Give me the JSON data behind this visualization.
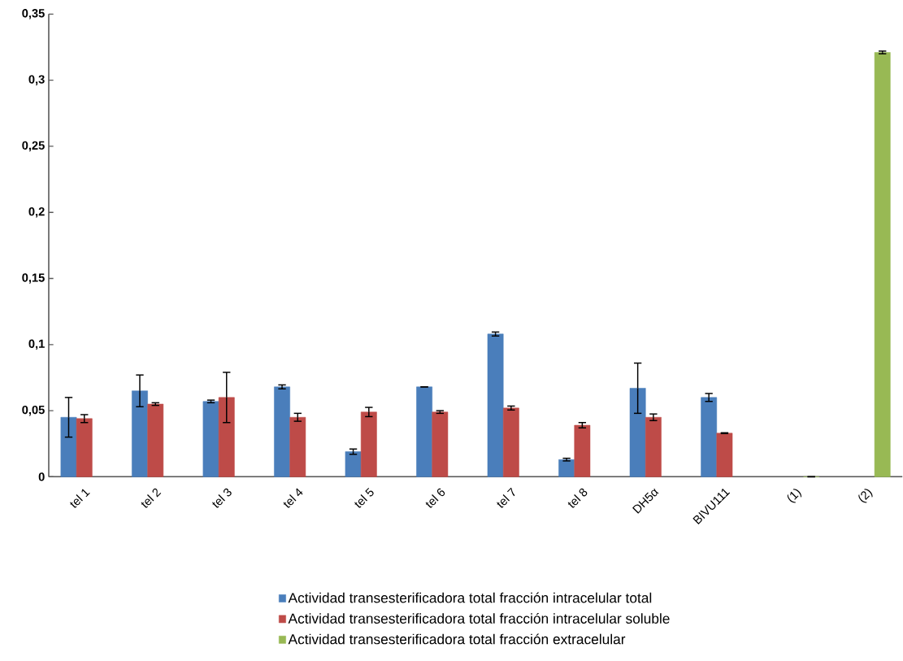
{
  "chart_data": {
    "type": "bar",
    "categories": [
      "tel 1",
      "tel 2",
      "tel 3",
      "tel 4",
      "tel 5",
      "tel 6",
      "tel 7",
      "tel 8",
      "DH5α",
      "BIVU111",
      "(1)",
      "(2)"
    ],
    "series": [
      {
        "name": "Actividad transesterificadora total fracción intracelular total",
        "color": "#4a7ebb",
        "values": [
          0.045,
          0.065,
          0.057,
          0.068,
          0.019,
          0.068,
          0.108,
          0.013,
          0.067,
          0.06,
          null,
          null
        ],
        "errors": [
          0.015,
          0.012,
          0.001,
          0.0015,
          0.002,
          null,
          0.0015,
          0.001,
          0.019,
          0.003,
          null,
          null
        ]
      },
      {
        "name": "Actividad transesterificadora total fracción intracelular soluble",
        "color": "#be4b48",
        "values": [
          0.044,
          0.055,
          0.06,
          0.045,
          0.049,
          0.049,
          0.052,
          0.039,
          0.045,
          0.033,
          null,
          null
        ],
        "errors": [
          0.003,
          0.001,
          0.019,
          0.003,
          0.0035,
          0.001,
          0.0015,
          0.002,
          0.0025,
          0.0003,
          null,
          null
        ]
      },
      {
        "name": "Actividad transesterificadora total fracción extracelular",
        "color": "#98b954",
        "values": [
          null,
          null,
          null,
          null,
          null,
          null,
          null,
          null,
          null,
          null,
          0,
          0.321
        ],
        "errors": [
          null,
          null,
          null,
          null,
          null,
          null,
          null,
          null,
          null,
          null,
          null,
          0.001
        ]
      }
    ],
    "ylim": [
      0,
      0.35
    ],
    "yticks": [
      0,
      {
        "value": 0.05,
        "label": "0,05"
      },
      {
        "value": 0.1,
        "label": "0,1"
      },
      {
        "value": 0.15,
        "label": "0,15"
      },
      {
        "value": 0.2,
        "label": "0,2"
      },
      {
        "value": 0.25,
        "label": "0,25"
      },
      {
        "value": 0.3,
        "label": "0,3"
      },
      {
        "value": 0.35,
        "label": "0,35"
      }
    ],
    "grid": false,
    "legend": "bottom"
  }
}
